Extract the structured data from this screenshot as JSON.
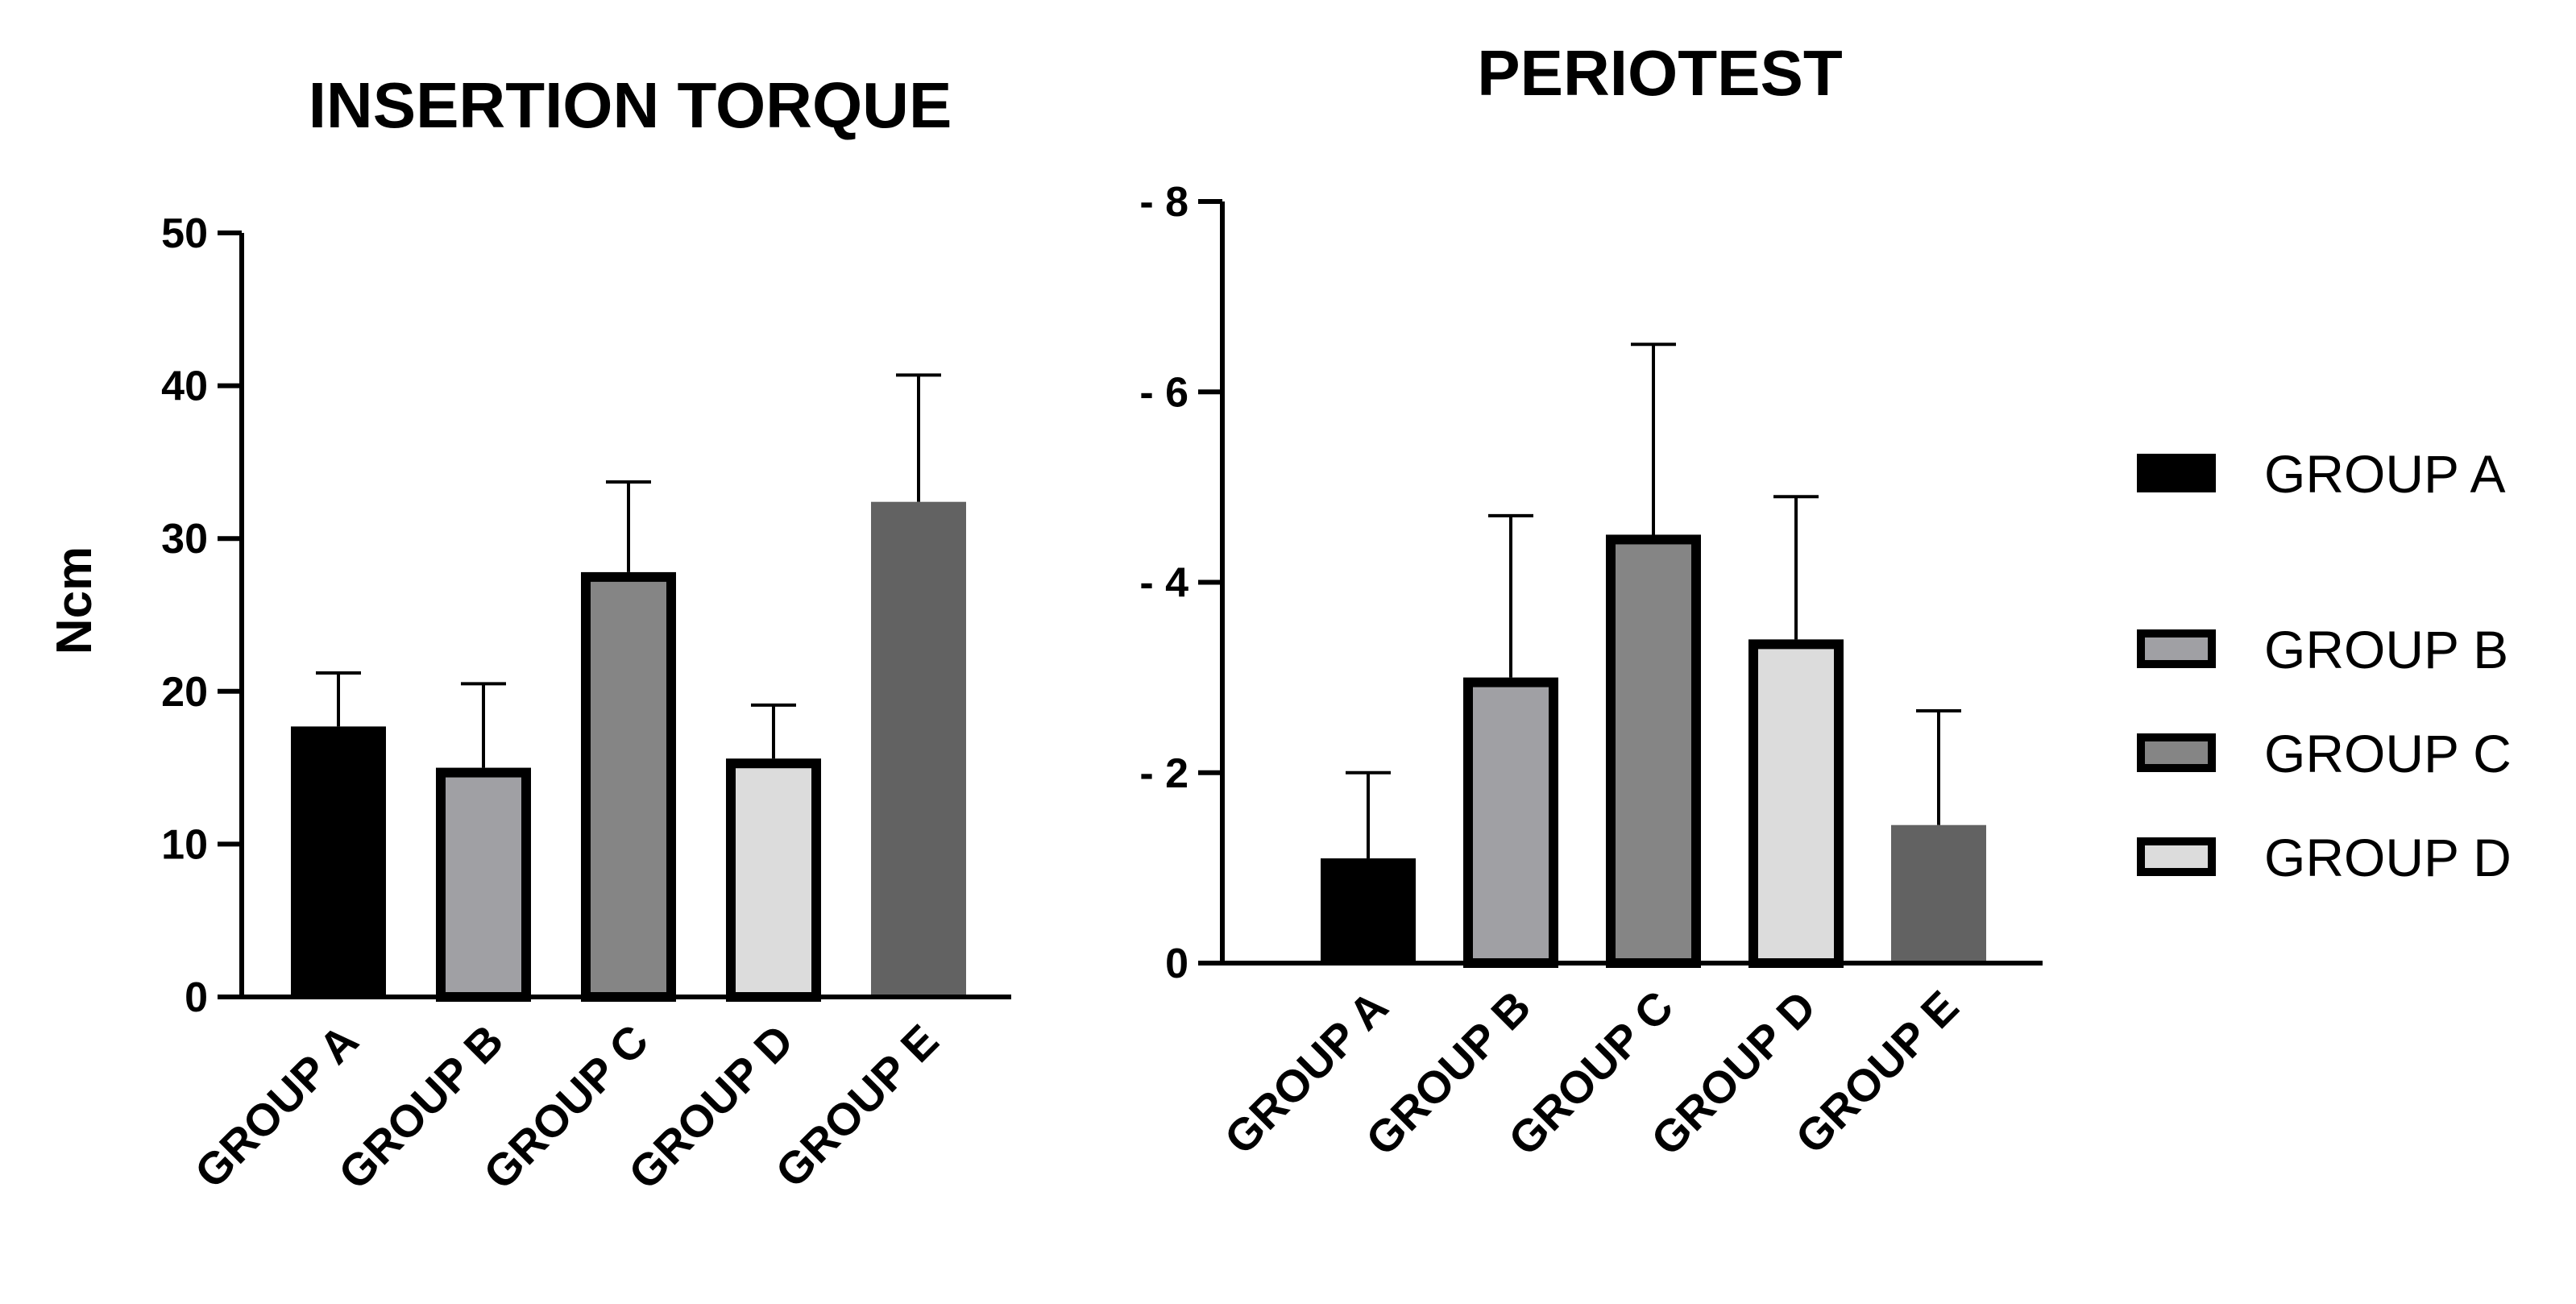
{
  "chart_data": [
    {
      "type": "bar",
      "title": "INSERTION TORQUE",
      "xlabel": "",
      "ylabel": "Ncm",
      "ylim": [
        0,
        50
      ],
      "yticks": [
        "0",
        "10",
        "20",
        "30",
        "40",
        "50"
      ],
      "categories": [
        "GROUP A",
        "GROUP B",
        "GROUP C",
        "GROUP D",
        "GROUP E"
      ],
      "values": [
        17.7,
        15.0,
        27.8,
        15.6,
        32.4
      ],
      "error_upper": [
        21.2,
        20.5,
        33.7,
        19.1,
        40.7
      ]
    },
    {
      "type": "bar",
      "title": "PERIOTEST",
      "xlabel": "",
      "ylabel": "",
      "ylim": [
        0,
        8
      ],
      "yticks": [
        "0",
        "- 2",
        "- 4",
        "- 6",
        "- 8"
      ],
      "categories": [
        "GROUP A",
        "GROUP B",
        "GROUP C",
        "GROUP D",
        "GROUP E"
      ],
      "values": [
        1.1,
        3.0,
        4.5,
        3.4,
        1.45
      ],
      "error_upper": [
        2.0,
        4.7,
        6.5,
        4.9,
        2.65
      ]
    }
  ],
  "legend": {
    "entries": [
      "GROUP A",
      "GROUP B",
      "GROUP C",
      "GROUP D"
    ],
    "fills": [
      "#000000",
      "#a0a0a4",
      "#858585",
      "#dcdcdc"
    ]
  },
  "colors": {
    "fills": [
      "#000000",
      "#a0a0a4",
      "#858585",
      "#dcdcdc",
      "#626262"
    ],
    "outlined": [
      false,
      true,
      true,
      true,
      false
    ]
  }
}
